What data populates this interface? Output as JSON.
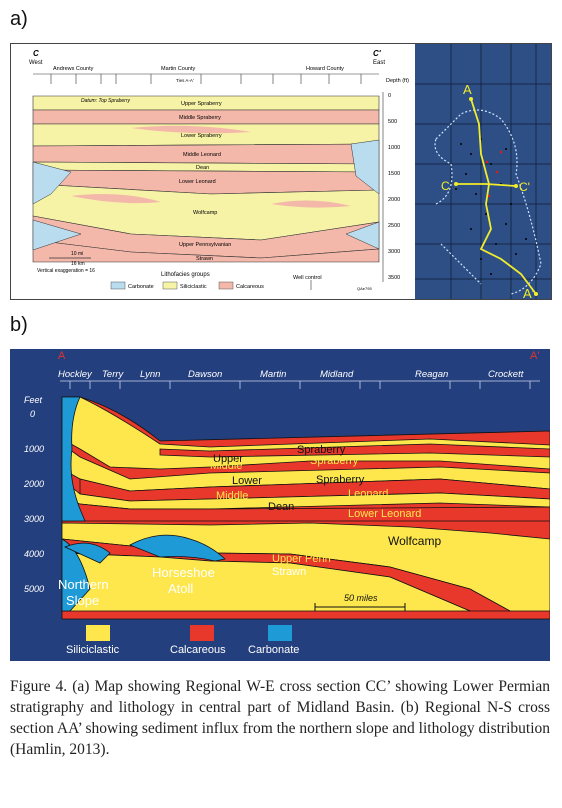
{
  "labels": {
    "a": "a)",
    "b": "b)"
  },
  "figA": {
    "left_end": "C",
    "left_dir": "West",
    "right_end": "C'",
    "right_dir": "East",
    "counties": [
      "Andrews County",
      "Martin County",
      "Howard County"
    ],
    "ties": "Ties\nA-A'",
    "datum": "Datum: Top Spraberry",
    "units": [
      "Upper Spraberry",
      "Middle Spraberry",
      "Lower Spraberry",
      "Middle Leonard",
      "Dean",
      "Lower Leonard",
      "Wolfcamp",
      "Upper Pennsylvanian",
      "Strawn"
    ],
    "depth_title": "Depth (ft)",
    "depth_ticks": [
      "0",
      "500",
      "1000",
      "1500",
      "2000",
      "2500",
      "3000",
      "3500"
    ],
    "scale_mi": "10 mi",
    "scale_km": "16 km",
    "vert_exag": "Vertical exaggeration = 16",
    "lithofacies_title": "Lithofacies groups",
    "legend": [
      "Carbonate",
      "Siliciclastic",
      "Calcareous"
    ],
    "well_control": "Well control",
    "code": "QAe795",
    "map_labels": {
      "a": "A",
      "a_prime": "A'",
      "c": "C",
      "c_prime": "C'"
    }
  },
  "figB": {
    "ends": [
      "A",
      "A'"
    ],
    "counties": [
      "Hockley",
      "Terry",
      "Lynn",
      "Dawson",
      "Martin",
      "Midland",
      "Reagan",
      "Crockett"
    ],
    "feet_title": "Feet",
    "depth_ticks": [
      "0",
      "1000",
      "2000",
      "3000",
      "4000",
      "5000"
    ],
    "units": {
      "upper": "Upper",
      "spraberry_top": "Spraberry",
      "middle1": "Middle",
      "spraberry_mid": "Spraberry",
      "lower": "Lower",
      "spraberry_low": "Spraberry",
      "middle2": "Middle",
      "leonard": "Leonard",
      "dean": "Dean",
      "lower_leonard": "Lower Leonard",
      "wolfcamp": "Wolfcamp",
      "upper_penn": "Upper Penn",
      "strawn": "Strawn"
    },
    "northern_slope": [
      "Northern",
      "Slope"
    ],
    "horseshoe": [
      "Horseshoe",
      "Atoll"
    ],
    "scale": "50 miles",
    "legend": [
      "Siliciclastic",
      "Calcareous",
      "Carbonate"
    ]
  },
  "caption": "Figure 4. (a) Map showing Regional W-E cross section CC’ showing Lower Permian stratigraphy and lithology in central part of Midland Basin. (b) Regional N-S cross section AA’ showing sediment influx from the northern slope and lithology distribution (Hamlin, 2013).",
  "colors": {
    "siliciclastic_a": "#f6f2a6",
    "calcareous_a": "#f3b8aa",
    "carbonate_a": "#b9dcef",
    "siliciclastic_b": "#fde74c",
    "calcareous_b": "#e8382c",
    "carbonate_b": "#1e9bd7",
    "navy": "#243f7d",
    "map_bg": "#2d4f86"
  }
}
